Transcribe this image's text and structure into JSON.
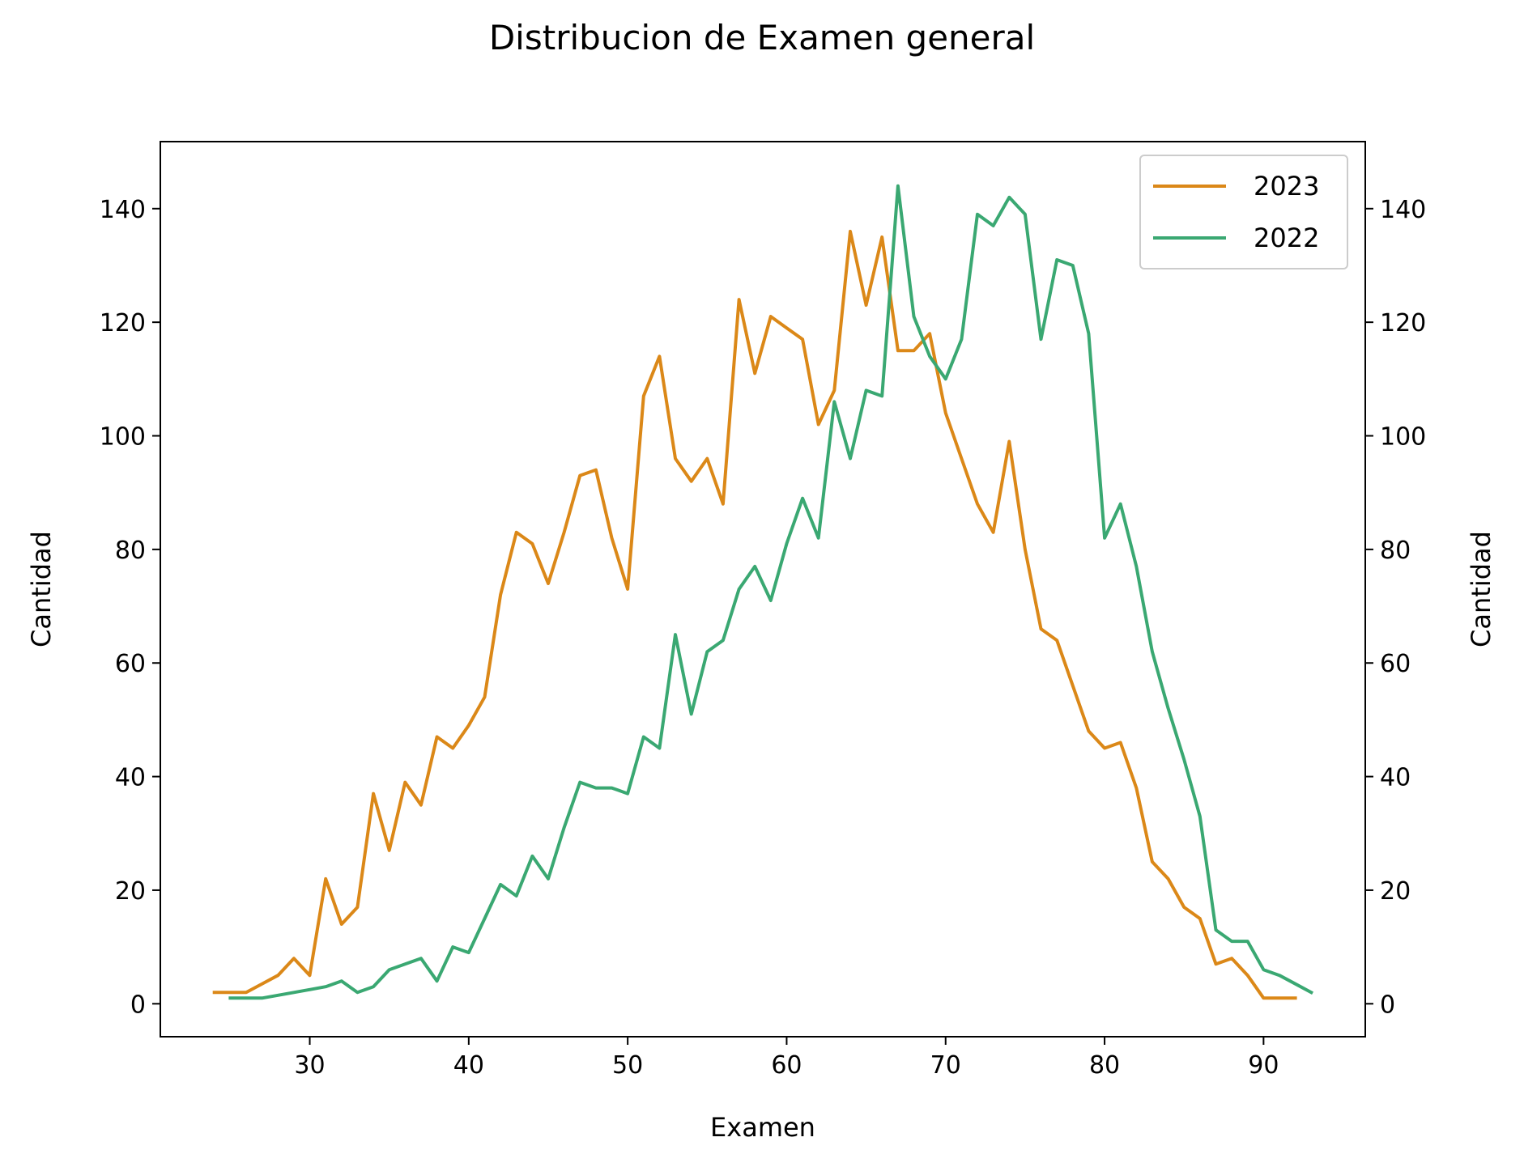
{
  "chart_data": {
    "type": "line",
    "title": "Distribucion de Examen general",
    "xlabel": "Examen",
    "ylabel": "Cantidad",
    "ylabel_right": "Cantidad",
    "xlim": [
      20.6,
      96.4
    ],
    "ylim": [
      -5.8,
      151.8
    ],
    "xticks": [
      30,
      40,
      50,
      60,
      70,
      80,
      90
    ],
    "yticks": [
      0,
      20,
      40,
      60,
      80,
      100,
      120,
      140
    ],
    "grid": false,
    "legend_position": "top-right",
    "series": [
      {
        "name": "2023",
        "color": "#db8818",
        "x": [
          24,
          25,
          26,
          27,
          28,
          29,
          30,
          31,
          32,
          33,
          34,
          35,
          36,
          37,
          38,
          39,
          40,
          41,
          42,
          43,
          44,
          45,
          46,
          47,
          48,
          49,
          50,
          51,
          52,
          53,
          54,
          55,
          56,
          57,
          58,
          59,
          60,
          61,
          62,
          63,
          64,
          65,
          66,
          67,
          68,
          69,
          70,
          71,
          72,
          73,
          74,
          75,
          76,
          77,
          78,
          79,
          80,
          81,
          82,
          83,
          84,
          85,
          86,
          87,
          88,
          89,
          90,
          91,
          92
        ],
        "values": [
          2,
          2,
          2,
          3.5,
          5,
          8,
          5,
          22,
          14,
          17,
          37,
          27,
          39,
          35,
          47,
          45,
          49,
          54,
          72,
          83,
          81,
          74,
          83,
          93,
          94,
          82,
          73,
          107,
          114,
          96,
          92,
          96,
          88,
          124,
          111,
          121,
          119,
          117,
          102,
          108,
          136,
          123,
          135,
          115,
          115,
          118,
          104,
          96,
          88,
          83,
          99,
          80,
          66,
          64,
          56,
          48,
          45,
          46,
          38,
          25,
          22,
          17,
          15,
          7,
          8,
          5,
          1,
          1,
          1
        ]
      },
      {
        "name": "2022",
        "color": "#3aa872",
        "x": [
          25,
          26,
          27,
          28,
          29,
          30,
          31,
          32,
          33,
          34,
          35,
          36,
          37,
          38,
          39,
          40,
          41,
          42,
          43,
          44,
          45,
          46,
          47,
          48,
          49,
          50,
          51,
          52,
          53,
          54,
          55,
          56,
          57,
          58,
          59,
          60,
          61,
          62,
          63,
          64,
          65,
          66,
          67,
          68,
          69,
          70,
          71,
          72,
          73,
          74,
          75,
          76,
          77,
          78,
          79,
          80,
          81,
          82,
          83,
          84,
          85,
          86,
          87,
          88,
          89,
          90,
          91,
          92,
          93
        ],
        "values": [
          1,
          1,
          1,
          1.5,
          2,
          2.5,
          3,
          4,
          2,
          3,
          6,
          7,
          8,
          4,
          10,
          9,
          15,
          21,
          19,
          26,
          22,
          31,
          39,
          38,
          38,
          37,
          47,
          45,
          65,
          51,
          62,
          64,
          73,
          77,
          71,
          81,
          89,
          82,
          106,
          96,
          108,
          107,
          144,
          121,
          114,
          110,
          117,
          139,
          137,
          142,
          139,
          117,
          131,
          130,
          118,
          82,
          88,
          77,
          62,
          52,
          43,
          33,
          13,
          11,
          11,
          6,
          5,
          3.5,
          2
        ]
      }
    ]
  }
}
